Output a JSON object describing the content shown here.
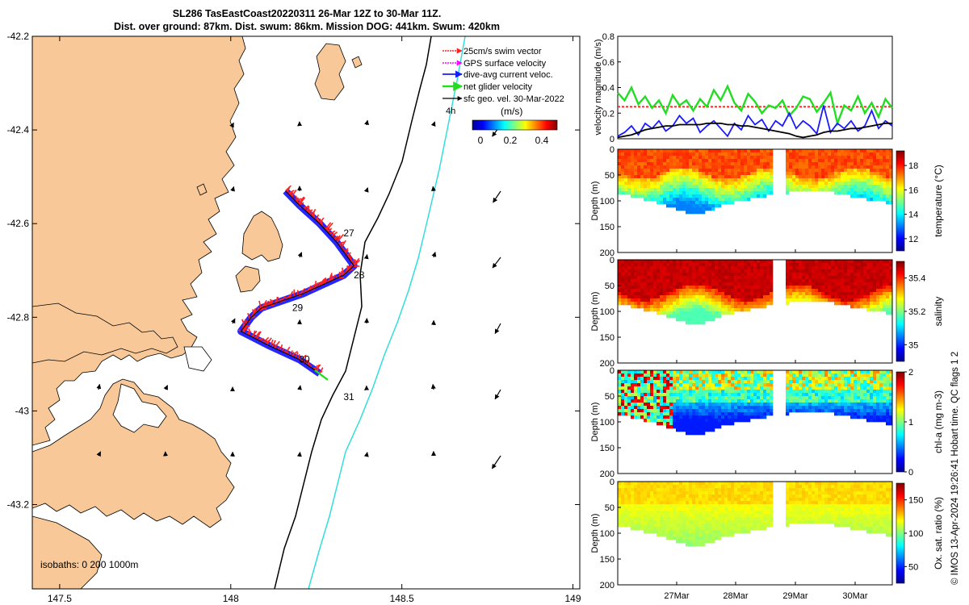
{
  "header": {
    "line1": "SL286 TasEastCoast20220311 26-Mar 12Z to 30-Mar 11Z.",
    "line2": "Dist. over ground: 87km. Dist. swum: 86km. Mission DOG: 441km. Swum: 420km"
  },
  "chart_data": [
    {
      "type": "map",
      "name": "glider-track-map",
      "x_ticks": [
        "147.5",
        "148",
        "148.5",
        "149"
      ],
      "x_values": [
        147.5,
        148,
        148.5,
        149
      ],
      "y_ticks": [
        "-42.2",
        "-42.4",
        "-42.6",
        "-42.8",
        "-43",
        "-43.2"
      ],
      "y_values": [
        -42.2,
        -42.4,
        -42.6,
        -42.8,
        -43.0,
        -43.2
      ],
      "xlim": [
        147.42,
        149.02
      ],
      "ylim": [
        -43.38,
        -42.2
      ],
      "legend": [
        {
          "label": "25cm/s swim vector",
          "color": "#ff2020"
        },
        {
          "label": "GPS surface velocity",
          "color": "#ff00ff"
        },
        {
          "label": "dive-avg current veloc.",
          "color": "#1a1aff"
        },
        {
          "label": "net glider velocity",
          "color": "#22dd22"
        },
        {
          "label": "sfc geo. vel. 30-Mar-2022",
          "color": "#000000"
        }
      ],
      "legend_extra": "4h",
      "colorbar": {
        "label": "(m/s)",
        "ticks": [
          "0",
          "0.2",
          "0.4"
        ]
      },
      "day_labels": [
        "27",
        "28",
        "29",
        "30",
        "31"
      ],
      "track_lonlat": [
        [
          148.16,
          -42.53
        ],
        [
          148.2,
          -42.56
        ],
        [
          148.26,
          -42.6
        ],
        [
          148.31,
          -42.64
        ],
        [
          148.36,
          -42.69
        ],
        [
          148.33,
          -42.71
        ],
        [
          148.27,
          -42.73
        ],
        [
          148.21,
          -42.75
        ],
        [
          148.13,
          -42.77
        ],
        [
          148.09,
          -42.78
        ],
        [
          148.06,
          -42.8
        ],
        [
          148.03,
          -42.83
        ],
        [
          148.11,
          -42.86
        ],
        [
          148.2,
          -42.89
        ],
        [
          148.26,
          -42.92
        ]
      ],
      "isobaths_label": "isobaths: 0   200  1000m"
    },
    {
      "type": "line",
      "name": "velocity-magnitude",
      "ylabel": "velocity magnitude (m/s)",
      "ylim": [
        0,
        0.8
      ],
      "yticks": [
        "0",
        "0.2",
        "0.4",
        "0.6",
        "0.8"
      ],
      "xlim": [
        0,
        4
      ],
      "series": [
        {
          "name": "swim vector",
          "color": "#ff2020",
          "values": [
            0.25,
            0.25,
            0.25,
            0.25,
            0.25,
            0.25,
            0.25,
            0.25,
            0.25,
            0.25,
            0.25,
            0.25,
            0.25,
            0.25,
            0.25,
            0.25,
            0.25,
            0.25,
            0.25,
            0.25,
            0.25,
            0.25,
            0.25,
            0.25,
            0.25,
            0.25,
            0.25,
            0.25,
            0.25,
            0.25,
            0.25,
            0.25,
            0.25,
            0.25,
            0.25,
            0.25,
            0.25,
            0.25,
            0.25,
            0.25,
            0.25
          ]
        },
        {
          "name": "net glider velocity",
          "color": "#22dd22",
          "values": [
            0.36,
            0.3,
            0.4,
            0.27,
            0.33,
            0.24,
            0.3,
            0.2,
            0.34,
            0.26,
            0.3,
            0.22,
            0.31,
            0.25,
            0.38,
            0.3,
            0.41,
            0.28,
            0.22,
            0.35,
            0.29,
            0.2,
            0.26,
            0.24,
            0.3,
            0.18,
            0.24,
            0.33,
            0.31,
            0.21,
            0.28,
            0.36,
            0.12,
            0.26,
            0.22,
            0.33,
            0.2,
            0.28,
            0.17,
            0.31,
            0.24
          ]
        },
        {
          "name": "dive-avg current",
          "color": "#1a1aff",
          "values": [
            0.02,
            0.05,
            0.1,
            0.03,
            0.12,
            0.08,
            0.14,
            0.06,
            0.1,
            0.18,
            0.12,
            0.16,
            0.05,
            0.1,
            0.14,
            0.08,
            0.02,
            0.12,
            0.07,
            0.18,
            0.11,
            0.15,
            0.06,
            0.14,
            0.1,
            0.2,
            0.08,
            0.14,
            0.1,
            0.04,
            0.26,
            0.05,
            0.12,
            0.08,
            0.14,
            0.06,
            0.1,
            0.22,
            0.08,
            0.14,
            0.1
          ]
        },
        {
          "name": "sfc geo vel",
          "color": "#000000",
          "values": [
            0.01,
            0.02,
            0.03,
            0.05,
            0.07,
            0.08,
            0.09,
            0.1,
            0.1,
            0.11,
            0.11,
            0.11,
            0.11,
            0.12,
            0.12,
            0.12,
            0.11,
            0.11,
            0.1,
            0.1,
            0.09,
            0.08,
            0.07,
            0.06,
            0.05,
            0.04,
            0.02,
            0.01,
            0.02,
            0.03,
            0.05,
            0.06,
            0.06,
            0.07,
            0.08,
            0.08,
            0.09,
            0.1,
            0.11,
            0.12,
            0.12
          ]
        }
      ]
    },
    {
      "type": "heatmap",
      "name": "temperature-section",
      "ylabel": "Depth (m)",
      "yticks": [
        "0",
        "50",
        "100",
        "150",
        "200"
      ],
      "ylim": [
        0,
        200
      ],
      "colorbar_label": "temperature (°C)",
      "colorbar_ticks": [
        "12",
        "14",
        "16",
        "18"
      ],
      "clim": [
        11,
        19.2
      ],
      "bottom_depth": [
        82,
        86,
        90,
        95,
        100,
        105,
        110,
        118,
        124,
        120,
        114,
        108,
        102,
        98,
        95,
        92,
        88,
        84,
        82,
        80,
        80,
        80,
        80,
        80,
        82,
        86,
        90,
        94,
        96,
        100,
        104
      ]
    },
    {
      "type": "heatmap",
      "name": "salinity-section",
      "ylabel": "Depth (m)",
      "yticks": [
        "0",
        "50",
        "100",
        "150",
        "200"
      ],
      "ylim": [
        0,
        200
      ],
      "colorbar_label": "salinity",
      "colorbar_ticks": [
        "35",
        "35.2",
        "35.4"
      ],
      "clim": [
        34.9,
        35.5
      ]
    },
    {
      "type": "heatmap",
      "name": "chl-a-section",
      "ylabel": "Depth (m)",
      "yticks": [
        "0",
        "50",
        "100",
        "150",
        "200"
      ],
      "ylim": [
        0,
        200
      ],
      "colorbar_label": "chl-a (mg m-3)",
      "colorbar_ticks": [
        "0",
        "1",
        "2"
      ],
      "clim": [
        0,
        2
      ]
    },
    {
      "type": "heatmap",
      "name": "oxygen-section",
      "ylabel": "Depth (m)",
      "yticks": [
        "0",
        "50",
        "100",
        "150",
        "200"
      ],
      "ylim": [
        0,
        200
      ],
      "colorbar_label": "Ox. sat. ratio (%)",
      "colorbar_ticks": [
        "50",
        "100",
        "150"
      ],
      "clim": [
        25,
        175
      ],
      "xticks": [
        "27Mar",
        "28Mar",
        "29Mar",
        "30Mar"
      ]
    }
  ],
  "footer": {
    "credit": "© IMOS 13-Apr-2024 19:26:41 Hobart time. QC flags 1  2"
  },
  "colors": {
    "land": "#f8c898",
    "isobath_200": "#000000",
    "isobath_1000": "#33dddd"
  }
}
